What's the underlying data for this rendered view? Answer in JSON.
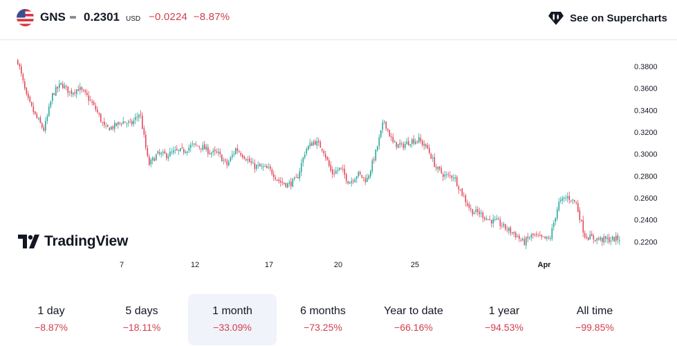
{
  "header": {
    "flag_icon": "us-flag-icon",
    "symbol": "GNS",
    "price": "0.2301",
    "currency": "USD",
    "change": "−0.0224",
    "change_pct": "−8.87%",
    "supercharts_label": "See on Supercharts",
    "supercharts_icon": "supercharts-icon",
    "down_color": "#d13d4b"
  },
  "watermark": {
    "text": "TradingView"
  },
  "periods": [
    {
      "label": "1 day",
      "change": "−8.87%",
      "active": false
    },
    {
      "label": "5 days",
      "change": "−18.11%",
      "active": false
    },
    {
      "label": "1 month",
      "change": "−33.09%",
      "active": true
    },
    {
      "label": "6 months",
      "change": "−73.25%",
      "active": false
    },
    {
      "label": "Year to date",
      "change": "−66.16%",
      "active": false
    },
    {
      "label": "1 year",
      "change": "−94.53%",
      "active": false
    },
    {
      "label": "All time",
      "change": "−99.85%",
      "active": false
    }
  ],
  "chart_data": {
    "type": "candlestick",
    "title": "",
    "ylim": [
      0.205,
      0.392
    ],
    "y_ticks": [
      "0.3800",
      "0.3600",
      "0.3400",
      "0.3200",
      "0.3000",
      "0.2800",
      "0.2600",
      "0.2400",
      "0.2200"
    ],
    "x_ticks": [
      "7",
      "12",
      "17",
      "20",
      "25",
      "Apr"
    ],
    "up_color": "#26a69a",
    "down_color": "#e0475a",
    "approx_close_path": [
      0.385,
      0.352,
      0.335,
      0.322,
      0.355,
      0.364,
      0.356,
      0.36,
      0.352,
      0.34,
      0.323,
      0.325,
      0.33,
      0.327,
      0.338,
      0.29,
      0.3,
      0.299,
      0.302,
      0.303,
      0.308,
      0.307,
      0.302,
      0.3,
      0.29,
      0.305,
      0.298,
      0.289,
      0.288,
      0.285,
      0.275,
      0.272,
      0.277,
      0.304,
      0.312,
      0.305,
      0.282,
      0.287,
      0.274,
      0.282,
      0.276,
      0.3,
      0.331,
      0.31,
      0.307,
      0.312,
      0.313,
      0.305,
      0.287,
      0.28,
      0.28,
      0.263,
      0.248,
      0.246,
      0.24,
      0.238,
      0.232,
      0.227,
      0.219,
      0.226,
      0.223,
      0.222,
      0.255,
      0.261,
      0.256,
      0.226,
      0.223,
      0.222,
      0.222,
      0.223
    ]
  }
}
